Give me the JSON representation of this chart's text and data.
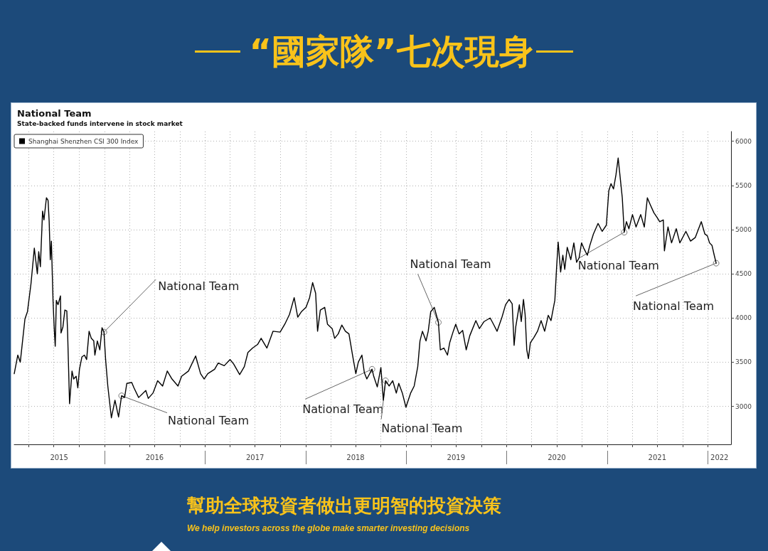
{
  "chart_data": {
    "type": "line",
    "title": "National Team",
    "subtitle": "State-backed funds intervene in stock market",
    "annotations": [
      "“國家隊”七次現身",
      "幫助全球投資者做出更明智的投資決策",
      "We help investors across the globe make smarter investing decisions",
      {
        "text": "National Team",
        "x": "2015-12-30",
        "y": 3840
      },
      {
        "text": "National Team",
        "x": "2016-03-03",
        "y": 3120
      },
      {
        "text": "National Team",
        "x": "2018-08-30",
        "y": 3420
      },
      {
        "text": "National Team",
        "x": "2018-10-18",
        "y": 3290
      },
      {
        "text": "National Team",
        "x": "2019-04-28",
        "y": 3950
      },
      {
        "text": "National Team",
        "x": "2021-03-03",
        "y": 4970
      },
      {
        "text": "National Team",
        "x": "2022-01-31",
        "y": 4620
      }
    ],
    "x": [
      "2015-02-07",
      "2015-02-20",
      "2015-03-01",
      "2015-03-18",
      "2015-03-27",
      "2015-04-09",
      "2015-04-21",
      "2015-05-02",
      "2015-05-07",
      "2015-05-13",
      "2015-05-21",
      "2015-05-26",
      "2015-06-04",
      "2015-06-10",
      "2015-06-14",
      "2015-06-18",
      "2015-06-22",
      "2015-06-28",
      "2015-07-02",
      "2015-07-06",
      "2015-07-10",
      "2015-07-16",
      "2015-07-25",
      "2015-07-27",
      "2015-08-03",
      "2015-08-10",
      "2015-08-17",
      "2015-08-20",
      "2015-08-27",
      "2015-09-05",
      "2015-09-11",
      "2015-09-20",
      "2015-09-26",
      "2015-10-02",
      "2015-10-11",
      "2015-10-20",
      "2015-10-28",
      "2015-11-06",
      "2015-11-14",
      "2015-11-23",
      "2015-11-27",
      "2015-12-06",
      "2015-12-15",
      "2015-12-23",
      "2015-12-30",
      "2016-01-05",
      "2016-01-13",
      "2016-01-26",
      "2016-02-08",
      "2016-02-21",
      "2016-03-03",
      "2016-03-14",
      "2016-03-22",
      "2016-04-09",
      "2016-04-17",
      "2016-05-04",
      "2016-05-30",
      "2016-06-08",
      "2016-06-25",
      "2016-07-12",
      "2016-07-30",
      "2016-08-16",
      "2016-09-02",
      "2016-09-24",
      "2016-10-07",
      "2016-11-01",
      "2016-11-27",
      "2016-12-15",
      "2016-12-28",
      "2017-01-10",
      "2017-02-04",
      "2017-02-17",
      "2017-03-11",
      "2017-04-01",
      "2017-04-14",
      "2017-05-06",
      "2017-05-23",
      "2017-06-05",
      "2017-06-22",
      "2017-07-10",
      "2017-07-23",
      "2017-08-13",
      "2017-09-04",
      "2017-09-30",
      "2017-10-17",
      "2017-11-03",
      "2017-11-20",
      "2017-12-03",
      "2017-12-16",
      "2018-01-02",
      "2018-01-15",
      "2018-01-26",
      "2018-02-06",
      "2018-02-13",
      "2018-02-23",
      "2018-03-11",
      "2018-03-21",
      "2018-04-07",
      "2018-04-16",
      "2018-04-29",
      "2018-05-12",
      "2018-05-25",
      "2018-06-07",
      "2018-06-20",
      "2018-07-02",
      "2018-07-11",
      "2018-07-24",
      "2018-08-02",
      "2018-08-11",
      "2018-08-30",
      "2018-09-05",
      "2018-09-18",
      "2018-10-01",
      "2018-10-10",
      "2018-10-18",
      "2018-10-31",
      "2018-11-13",
      "2018-11-26",
      "2018-12-05",
      "2018-12-18",
      "2018-12-31",
      "2019-01-17",
      "2019-01-30",
      "2019-02-12",
      "2019-02-20",
      "2019-03-01",
      "2019-03-14",
      "2019-03-22",
      "2019-03-31",
      "2019-04-13",
      "2019-04-28",
      "2019-05-05",
      "2019-05-18",
      "2019-05-31",
      "2019-06-08",
      "2019-06-21",
      "2019-06-30",
      "2019-07-12",
      "2019-07-25",
      "2019-08-07",
      "2019-08-20",
      "2019-09-11",
      "2019-09-24",
      "2019-10-11",
      "2019-11-02",
      "2019-11-14",
      "2019-11-27",
      "2019-12-15",
      "2019-12-28",
      "2020-01-10",
      "2020-01-21",
      "2020-01-28",
      "2020-02-03",
      "2020-02-16",
      "2020-02-23",
      "2020-03-02",
      "2020-03-08",
      "2020-03-14",
      "2020-03-20",
      "2020-03-27",
      "2020-04-09",
      "2020-04-22",
      "2020-05-05",
      "2020-05-18",
      "2020-05-31",
      "2020-06-10",
      "2020-06-19",
      "2020-06-24",
      "2020-06-30",
      "2020-07-06",
      "2020-07-15",
      "2020-07-23",
      "2020-07-30",
      "2020-08-08",
      "2020-08-21",
      "2020-09-01",
      "2020-09-11",
      "2020-09-20",
      "2020-09-29",
      "2020-10-07",
      "2020-10-20",
      "2020-10-29",
      "2020-11-11",
      "2020-11-28",
      "2020-12-13",
      "2020-12-28",
      "2021-01-06",
      "2021-01-14",
      "2021-01-23",
      "2021-02-01",
      "2021-02-09",
      "2021-02-18",
      "2021-02-24",
      "2021-03-03",
      "2021-03-11",
      "2021-03-20",
      "2021-04-02",
      "2021-04-15",
      "2021-05-02",
      "2021-05-15",
      "2021-05-26",
      "2021-06-06",
      "2021-06-19",
      "2021-06-30",
      "2021-07-10",
      "2021-07-23",
      "2021-07-27",
      "2021-08-09",
      "2021-08-22",
      "2021-09-08",
      "2021-09-21",
      "2021-10-13",
      "2021-10-30",
      "2021-11-16",
      "2021-12-08",
      "2021-12-21",
      "2021-12-30",
      "2022-01-07",
      "2022-01-16",
      "2022-01-24",
      "2022-01-31"
    ],
    "series": [
      {
        "name": "Shanghai Shenzhen CSI 300 Index",
        "color": "#000000",
        "values": [
          3370,
          3580,
          3500,
          3990,
          4070,
          4390,
          4790,
          4500,
          4750,
          4580,
          5210,
          5110,
          5360,
          5330,
          5090,
          4660,
          4870,
          4200,
          3900,
          3680,
          4200,
          4150,
          4250,
          3830,
          3900,
          4090,
          4080,
          3830,
          3030,
          3400,
          3310,
          3340,
          3210,
          3420,
          3560,
          3580,
          3530,
          3850,
          3770,
          3740,
          3580,
          3740,
          3640,
          3890,
          3840,
          3530,
          3230,
          2870,
          3070,
          2880,
          3120,
          3100,
          3260,
          3270,
          3210,
          3100,
          3180,
          3090,
          3150,
          3290,
          3230,
          3400,
          3310,
          3230,
          3340,
          3400,
          3570,
          3370,
          3310,
          3370,
          3420,
          3490,
          3460,
          3530,
          3480,
          3360,
          3450,
          3610,
          3660,
          3700,
          3770,
          3660,
          3850,
          3840,
          3930,
          4040,
          4230,
          4010,
          4070,
          4120,
          4230,
          4400,
          4280,
          3850,
          4090,
          4120,
          3930,
          3880,
          3770,
          3820,
          3920,
          3850,
          3820,
          3580,
          3370,
          3500,
          3580,
          3380,
          3310,
          3420,
          3340,
          3220,
          3440,
          3070,
          3290,
          3230,
          3290,
          3150,
          3260,
          3150,
          2990,
          3150,
          3230,
          3450,
          3740,
          3850,
          3740,
          3850,
          4070,
          4120,
          3950,
          3640,
          3660,
          3580,
          3720,
          3850,
          3930,
          3820,
          3860,
          3640,
          3800,
          3970,
          3880,
          3960,
          4000,
          3930,
          3850,
          4010,
          4150,
          4210,
          4160,
          3690,
          3900,
          4150,
          3960,
          4210,
          4040,
          3640,
          3540,
          3720,
          3780,
          3850,
          3970,
          3850,
          4030,
          3970,
          4120,
          4200,
          4550,
          4860,
          4520,
          4710,
          4550,
          4800,
          4660,
          4850,
          4630,
          4680,
          4850,
          4790,
          4710,
          4820,
          4950,
          5070,
          4980,
          5050,
          5440,
          5520,
          5460,
          5620,
          5810,
          5540,
          5360,
          4970,
          5090,
          5010,
          5170,
          5030,
          5170,
          5030,
          5360,
          5280,
          5190,
          5140,
          5090,
          5110,
          4760,
          5030,
          4850,
          5010,
          4850,
          4980,
          4870,
          4910,
          5090,
          4950,
          4930,
          4850,
          4820,
          4710,
          4620
        ]
      }
    ],
    "xlim": [
      "2015-02-07",
      "2022-03-26"
    ],
    "xticks": [
      {
        "value": "2015-04-01",
        "label": null
      },
      {
        "value": "2015-07-01",
        "label": null
      },
      {
        "value": "2015-07-20",
        "label": "2015"
      },
      {
        "value": "2015-10-01",
        "label": null
      },
      {
        "value": "2016-01-01",
        "label": null
      },
      {
        "value": "2016-04-01",
        "label": null
      },
      {
        "value": "2016-07-01",
        "label": null
      },
      {
        "value": "2016-07-01",
        "label": "2016"
      },
      {
        "value": "2016-10-01",
        "label": null
      },
      {
        "value": "2017-01-01",
        "label": null
      },
      {
        "value": "2017-04-01",
        "label": null
      },
      {
        "value": "2017-07-01",
        "label": null
      },
      {
        "value": "2017-07-01",
        "label": "2017"
      },
      {
        "value": "2017-10-01",
        "label": null
      },
      {
        "value": "2018-01-01",
        "label": null
      },
      {
        "value": "2018-04-01",
        "label": null
      },
      {
        "value": "2018-07-01",
        "label": null
      },
      {
        "value": "2018-07-01",
        "label": "2018"
      },
      {
        "value": "2018-10-01",
        "label": null
      },
      {
        "value": "2019-01-01",
        "label": null
      },
      {
        "value": "2019-04-01",
        "label": null
      },
      {
        "value": "2019-07-01",
        "label": null
      },
      {
        "value": "2019-07-01",
        "label": "2019"
      },
      {
        "value": "2019-10-01",
        "label": null
      },
      {
        "value": "2020-01-01",
        "label": null
      },
      {
        "value": "2020-04-01",
        "label": null
      },
      {
        "value": "2020-07-01",
        "label": null
      },
      {
        "value": "2020-07-01",
        "label": "2020"
      },
      {
        "value": "2020-10-01",
        "label": null
      },
      {
        "value": "2021-01-01",
        "label": null
      },
      {
        "value": "2021-04-01",
        "label": null
      },
      {
        "value": "2021-07-01",
        "label": null
      },
      {
        "value": "2021-07-01",
        "label": "2021"
      },
      {
        "value": "2021-10-01",
        "label": null
      },
      {
        "value": "2022-01-01",
        "label": null
      },
      {
        "value": "2022-02-12",
        "label": "2022"
      }
    ],
    "ylim": [
      2570,
      6110
    ],
    "yticks": [
      3000,
      3500,
      4000,
      4500,
      5000,
      5500,
      6000
    ],
    "grid": true,
    "legend": "top left",
    "marker": "none"
  }
}
